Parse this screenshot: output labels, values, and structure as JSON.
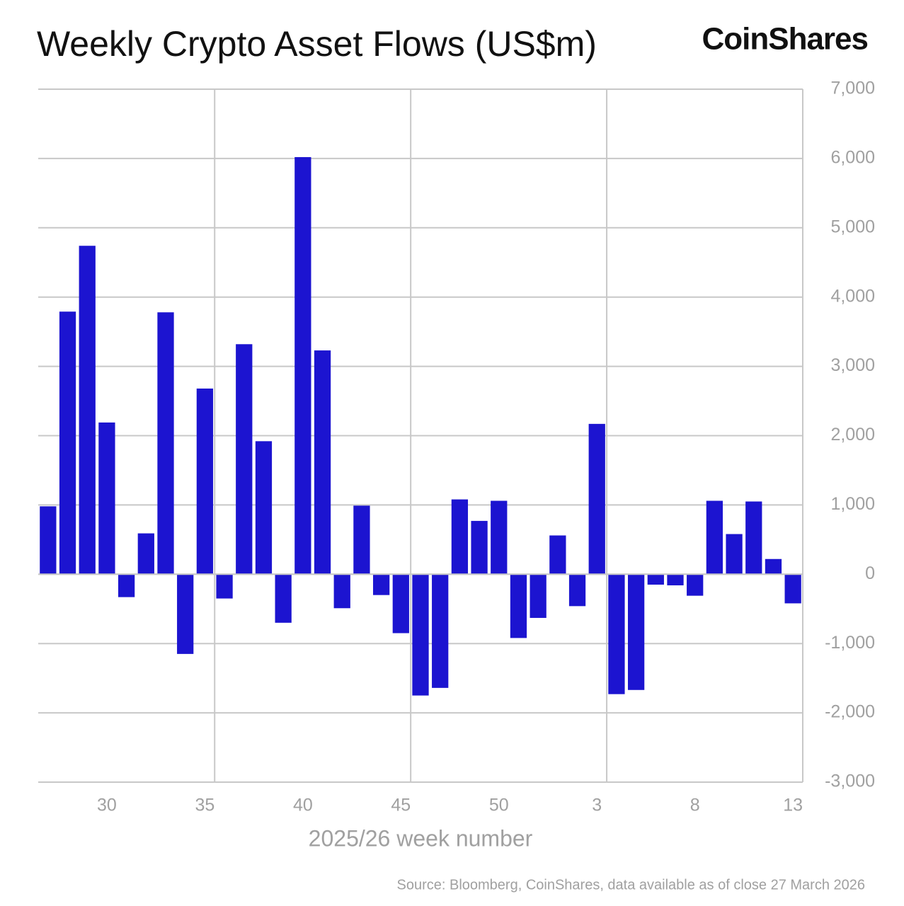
{
  "chart_data": {
    "type": "bar",
    "title": "Weekly Crypto Asset Flows (US$m)",
    "brand": "CoinShares",
    "x_label": "2025/26 week number",
    "source": "Source: Bloomberg, CoinShares, data available as of close 27 March 2026",
    "categories": [
      null,
      null,
      null,
      "30",
      null,
      null,
      null,
      null,
      "35",
      null,
      null,
      null,
      null,
      "40",
      null,
      null,
      null,
      null,
      "45",
      null,
      null,
      null,
      null,
      "50",
      null,
      null,
      null,
      null,
      "3",
      null,
      null,
      null,
      null,
      "8",
      null,
      null,
      null,
      null,
      "13"
    ],
    "values": [
      980,
      3790,
      4740,
      2190,
      -330,
      590,
      3780,
      -1150,
      2680,
      -350,
      3320,
      1920,
      -700,
      6020,
      3230,
      -490,
      990,
      -300,
      -850,
      -1750,
      -1640,
      1080,
      770,
      1060,
      -920,
      -630,
      560,
      -460,
      2170,
      -1730,
      -1670,
      -150,
      -160,
      -310,
      1060,
      580,
      1050,
      220,
      -420
    ],
    "color": "#1c14d0",
    "ylim": [
      -3000,
      7000
    ],
    "yticks": [
      {
        "value": -3000,
        "label": "-3,000"
      },
      {
        "value": -2000,
        "label": "-2,000"
      },
      {
        "value": -1000,
        "label": "-1,000"
      },
      0,
      {
        "value": 1000,
        "label": "1,000"
      },
      {
        "value": 2000,
        "label": "2,000"
      },
      {
        "value": 3000,
        "label": "3,000"
      },
      {
        "value": 4000,
        "label": "4,000"
      },
      {
        "value": 5000,
        "label": "5,000"
      },
      {
        "value": 6000,
        "label": "6,000"
      },
      {
        "value": 7000,
        "label": "7,000"
      }
    ],
    "grid": true
  }
}
